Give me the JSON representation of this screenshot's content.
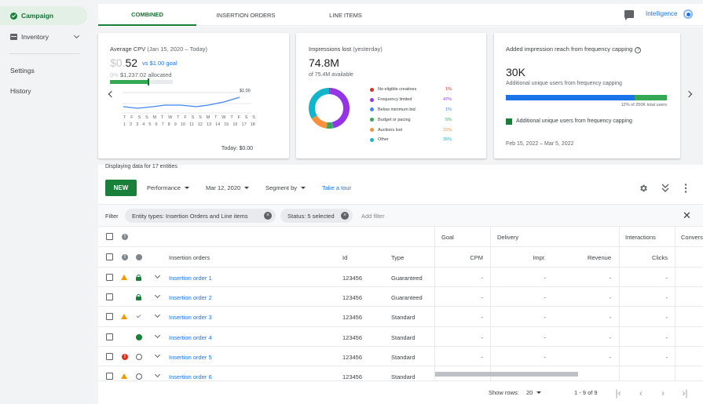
{
  "sidebar": {
    "items": [
      {
        "label": "Campaign",
        "icon": "check-circle-icon"
      },
      {
        "label": "Inventory",
        "icon": "inventory-icon"
      },
      {
        "label": "Settings"
      },
      {
        "label": "History"
      }
    ]
  },
  "tabs": [
    {
      "label": "COMBINED",
      "active": true
    },
    {
      "label": "INSERTION ORDERS"
    },
    {
      "label": "LINE ITEMS"
    }
  ],
  "header": {
    "intelligence_label": "Intelligence"
  },
  "card_cpv": {
    "title": "Average CPV",
    "title_range": "(Jan 15, 2020 – Today)",
    "value_ghost": "$0.",
    "value": "52",
    "goal": "vs $1.00 goal",
    "alloc_ghost": "0%",
    "allocated": "$1,237.02 allocated",
    "chart_top_label": "$1.00",
    "days": [
      "T",
      "F",
      "S",
      "S",
      "M",
      "T",
      "W",
      "T",
      "F",
      "S",
      "S",
      "M",
      "T",
      "W",
      "T",
      "F",
      "S",
      "S"
    ],
    "day_nums": [
      "1",
      "2",
      "3",
      "4",
      "5",
      "6",
      "7",
      "8",
      "9",
      "10",
      "11",
      "12",
      "13",
      "14",
      "15",
      "16",
      "17",
      "18"
    ],
    "footer": "Today: $0.00"
  },
  "card_impressions": {
    "title": "Impressions lost",
    "title_range": "(yesterday)",
    "value": "74.8M",
    "sub": "of 75.4M available",
    "legend": [
      {
        "label": "No eligible creatives",
        "value": "1%",
        "color": "#d93025"
      },
      {
        "label": "Frequency limited",
        "value": "47%",
        "color": "#9334e6"
      },
      {
        "label": "Below minimum bid",
        "value": "1%",
        "color": "#4285f4"
      },
      {
        "label": "Budget or pacing",
        "value": "5%",
        "color": "#34a853"
      },
      {
        "label": "Auctions lost",
        "value": "15%",
        "color": "#fa903e"
      },
      {
        "label": "Other",
        "value": "35%",
        "color": "#12b5cb"
      }
    ]
  },
  "card_reach": {
    "title": "Added impression reach from frequency capping",
    "value": "30K",
    "sub": "Additional unique users from frequency capping",
    "bar_caption": "12% of 250K total users",
    "bar_fraction": 0.12,
    "legend": "Additional unique users from frequency capping",
    "date_range": "Feb 15, 2022 – Mar 5, 2022"
  },
  "toolbar": {
    "display_info": "Displaying data for 17 entities",
    "new_label": "NEW",
    "performance": "Performance",
    "date": "Mar 12, 2020",
    "segment": "Segment by",
    "tour": "Take a tour"
  },
  "filter": {
    "label": "Filter",
    "chips": [
      "Entity types: Insertion Orders and Line items",
      "Status: 5 selected"
    ],
    "add_placeholder": "Add filter"
  },
  "table": {
    "group_headers": [
      "Goal",
      "Delivery",
      "Interactions",
      "Convers"
    ],
    "columns": [
      "Insertion orders",
      "Id",
      "Type",
      "CPM",
      "Impr.",
      "Revenue",
      "Clicks"
    ],
    "rows": [
      {
        "name": "Insertion order 1",
        "id": "123456",
        "type": "Guaranteed",
        "cpm": "-",
        "impr": "-",
        "revenue": "-",
        "clicks": "-"
      },
      {
        "name": "Insertion order 2",
        "id": "123456",
        "type": "Guaranteed",
        "cpm": "-",
        "impr": "-",
        "revenue": "-",
        "clicks": "-"
      },
      {
        "name": "Insertion order 3",
        "id": "123456",
        "type": "Standard",
        "cpm": "-",
        "impr": "-",
        "revenue": "-",
        "clicks": "-"
      },
      {
        "name": "Insertion order 4",
        "id": "123456",
        "type": "Standard",
        "cpm": "-",
        "impr": "-",
        "revenue": "-",
        "clicks": "-"
      },
      {
        "name": "Insertion order 5",
        "id": "123456",
        "type": "Standard",
        "cpm": "-",
        "impr": "-",
        "revenue": "-",
        "clicks": "-"
      },
      {
        "name": "Insertion order 6",
        "id": "123456",
        "type": "Standard",
        "cpm": "",
        "impr": "",
        "revenue": "",
        "clicks": ""
      }
    ]
  },
  "pagination": {
    "rows_label": "Show rows:",
    "rows_value": "20",
    "range": "1 - 9 of 9"
  }
}
